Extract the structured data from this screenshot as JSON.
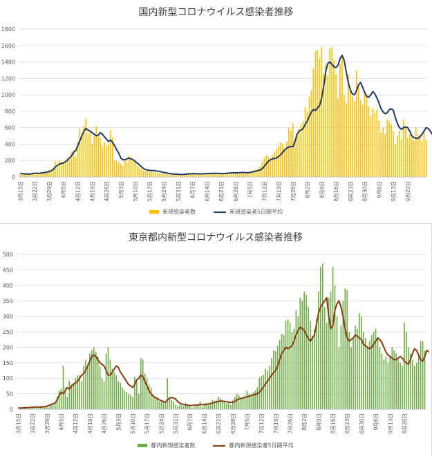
{
  "chart_data": [
    {
      "type": "bar+line",
      "title": "国内新型コロナウイルス感染者推移",
      "xlabel": "",
      "ylabel": "",
      "ylim": [
        0,
        1800
      ],
      "yticks": [
        "0",
        "200",
        "400",
        "600",
        "800",
        "1000",
        "1200",
        "1400",
        "1600",
        "1800"
      ],
      "xtick_labels": [
        "3月15日",
        "3月22日",
        "3月29日",
        "4月5日",
        "4月12日",
        "4月19日",
        "4月26日",
        "5月3日",
        "5月10日",
        "5月17日",
        "5月24日",
        "5月31日",
        "6月7日",
        "6月14日",
        "6月21日",
        "6月28日",
        "7月5日",
        "7月12日",
        "7月19日",
        "7月26日",
        "8月2日",
        "8月9日",
        "8月16日",
        "8月23日",
        "8月30日",
        "9月6日",
        "9月13日",
        "9月20日"
      ],
      "grid": true,
      "legend_position": "bottom",
      "colors": {
        "bars": "#FFC000",
        "line": "#203864"
      },
      "series": [
        {
          "name": "新規感染者数",
          "kind": "bar",
          "values": [
            42,
            35,
            30,
            45,
            28,
            40,
            55,
            38,
            50,
            30,
            45,
            62,
            50,
            70,
            95,
            60,
            90,
            190,
            120,
            205,
            170,
            180,
            210,
            240,
            200,
            300,
            330,
            240,
            430,
            590,
            500,
            620,
            710,
            520,
            560,
            400,
            500,
            620,
            510,
            470,
            380,
            420,
            380,
            400,
            570,
            480,
            200,
            195,
            180,
            160,
            140,
            200,
            180,
            260,
            240,
            200,
            180,
            140,
            120,
            100,
            80,
            70,
            75,
            65,
            70,
            60,
            55,
            50,
            45,
            40,
            45,
            30,
            35,
            25,
            30,
            35,
            30,
            25,
            20,
            25,
            40,
            35,
            50,
            30,
            35,
            45,
            40,
            30,
            25,
            35,
            40,
            38,
            45,
            40,
            50,
            36,
            45,
            30,
            40,
            35,
            45,
            55,
            50,
            48,
            40,
            45,
            50,
            60,
            55,
            45,
            50,
            55,
            65,
            70,
            80,
            90,
            100,
            130,
            180,
            230,
            260,
            250,
            200,
            260,
            300,
            340,
            380,
            420,
            400,
            350,
            430,
            600,
            570,
            650,
            420,
            520,
            580,
            640,
            680,
            850,
            790,
            980,
            1050,
            1320,
            1530,
            1550,
            1450,
            1580,
            1260,
            1380,
            1240,
            1560,
            1580,
            1420,
            1250,
            960,
            1380,
            1480,
            1000,
            900,
            1250,
            1050,
            980,
            920,
            1300,
            1120,
            940,
            880,
            1050,
            1000,
            860,
            740,
            840,
            780,
            820,
            690,
            540,
            600,
            520,
            700,
            680,
            640,
            560,
            400,
            500,
            560,
            460,
            700,
            620,
            480,
            520,
            480,
            440,
            600,
            510,
            500,
            440,
            570,
            450
          ]
        },
        {
          "name": "新規感染者5日間平均",
          "kind": "line",
          "values": [
            45,
            40,
            38,
            38,
            35,
            35,
            42,
            45,
            45,
            42,
            48,
            52,
            55,
            60,
            65,
            75,
            90,
            120,
            140,
            155,
            165,
            170,
            185,
            205,
            230,
            260,
            300,
            320,
            380,
            440,
            500,
            560,
            590,
            570,
            560,
            540,
            520,
            500,
            510,
            540,
            520,
            490,
            460,
            430,
            450,
            420,
            380,
            330,
            290,
            230,
            210,
            210,
            220,
            230,
            220,
            210,
            190,
            170,
            150,
            125,
            105,
            90,
            85,
            80,
            80,
            78,
            75,
            70,
            68,
            60,
            55,
            52,
            45,
            40,
            38,
            35,
            35,
            33,
            30,
            30,
            32,
            35,
            38,
            38,
            40,
            40,
            40,
            38,
            38,
            38,
            40,
            42,
            42,
            43,
            44,
            44,
            44,
            43,
            42,
            41,
            42,
            45,
            47,
            49,
            50,
            50,
            51,
            53,
            55,
            55,
            53,
            52,
            55,
            60,
            65,
            72,
            78,
            85,
            100,
            130,
            160,
            190,
            210,
            220,
            225,
            230,
            250,
            270,
            300,
            330,
            350,
            365,
            370,
            370,
            430,
            520,
            560,
            570,
            590,
            640,
            680,
            740,
            790,
            820,
            810,
            840,
            870,
            960,
            1100,
            1280,
            1380,
            1400,
            1370,
            1340,
            1330,
            1360,
            1440,
            1480,
            1420,
            1280,
            1150,
            1060,
            1010,
            1000,
            1050,
            1120,
            1150,
            1090,
            1030,
            980,
            970,
            1000,
            1040,
            1010,
            960,
            900,
            830,
            790,
            770,
            780,
            820,
            830,
            810,
            720,
            650,
            600,
            580,
            600,
            610,
            600,
            560,
            500,
            480,
            470,
            470,
            490,
            520,
            560,
            600,
            590,
            560,
            520,
            520,
            480,
            460,
            460,
            510,
            540,
            530
          ]
        }
      ]
    },
    {
      "type": "bar+line",
      "title": "東京都内新型コロナウイルス感染者推移",
      "xlabel": "",
      "ylabel": "",
      "ylim": [
        0,
        500
      ],
      "yticks": [
        "0",
        "50",
        "100",
        "150",
        "200",
        "250",
        "300",
        "350",
        "400",
        "450",
        "500"
      ],
      "xtick_labels": [
        "3月15日",
        "3月22日",
        "3月29日",
        "4月5日",
        "4月12日",
        "4月19日",
        "4月26日",
        "5月3日",
        "5月10日",
        "5月17日",
        "5月24日",
        "5月31日",
        "6月7日",
        "6月14日",
        "6月21日",
        "6月28日",
        "7月5日",
        "7月12日",
        "7月19日",
        "7月26日",
        "8月2日",
        "8月9日",
        "8月16日",
        "8月23日",
        "8月30日",
        "9月6日",
        "9月13日",
        "9月20日"
      ],
      "grid": true,
      "legend_position": "bottom",
      "colors": {
        "bars": "#70AD47",
        "line": "#843C0C"
      },
      "series": [
        {
          "name": "都内新規感染者数",
          "kind": "bar",
          "values": [
            0,
            3,
            4,
            6,
            5,
            2,
            5,
            4,
            8,
            5,
            4,
            9,
            6,
            9,
            8,
            6,
            16,
            20,
            17,
            41,
            60,
            66,
            140,
            70,
            40,
            92,
            80,
            85,
            100,
            109,
            110,
            90,
            140,
            160,
            145,
            180,
            190,
            200,
            185,
            170,
            140,
            100,
            90,
            180,
            200,
            160,
            130,
            120,
            110,
            90,
            85,
            70,
            60,
            55,
            50,
            46,
            40,
            105,
            90,
            50,
            165,
            160,
            115,
            100,
            80,
            70,
            45,
            40,
            35,
            25,
            30,
            25,
            20,
            100,
            40,
            30,
            25,
            15,
            10,
            15,
            12,
            10,
            20,
            15,
            10,
            5,
            8,
            12,
            15,
            25,
            8,
            18,
            20,
            15,
            20,
            30,
            27,
            28,
            40,
            35,
            24,
            22,
            18,
            22,
            14,
            30,
            40,
            50,
            45,
            35,
            40,
            45,
            60,
            50,
            48,
            55,
            60,
            70,
            102,
            107,
            111,
            130,
            124,
            140,
            165,
            190,
            188,
            206,
            224,
            243,
            240,
            286,
            290,
            280,
            250,
            260,
            320,
            300,
            360,
            350,
            380,
            370,
            330,
            286,
            237,
            258,
            292,
            380,
            460,
            470,
            330,
            280,
            360,
            380,
            460,
            400,
            300,
            200,
            270,
            350,
            390,
            385,
            250,
            200,
            230,
            270,
            260,
            310,
            300,
            250,
            230,
            200,
            220,
            240,
            250,
            260,
            230,
            200,
            180,
            160,
            170,
            150,
            170,
            200,
            190,
            180,
            160,
            150,
            140,
            280,
            250,
            200,
            180,
            160,
            140,
            150,
            170,
            220,
            220,
            190
          ]
        },
        {
          "name": "都内新規感染者5日間平均",
          "kind": "line",
          "values": [
            5,
            4,
            4,
            5,
            5,
            5,
            6,
            6,
            7,
            7,
            7,
            7,
            8,
            8,
            10,
            12,
            15,
            18,
            20,
            30,
            45,
            55,
            50,
            60,
            70,
            65,
            75,
            80,
            85,
            90,
            100,
            110,
            115,
            125,
            140,
            155,
            170,
            175,
            170,
            160,
            150,
            145,
            140,
            125,
            110,
            110,
            120,
            130,
            140,
            135,
            120,
            110,
            100,
            90,
            80,
            75,
            70,
            80,
            95,
            100,
            110,
            105,
            90,
            75,
            60,
            50,
            42,
            38,
            35,
            30,
            28,
            25,
            22,
            30,
            35,
            38,
            36,
            33,
            25,
            20,
            17,
            15,
            14,
            13,
            12,
            12,
            13,
            13,
            14,
            15,
            15,
            15,
            16,
            17,
            18,
            20,
            22,
            24,
            25,
            27,
            26,
            25,
            24,
            23,
            22,
            22,
            25,
            30,
            33,
            35,
            36,
            38,
            40,
            42,
            44,
            46,
            48,
            50,
            55,
            62,
            72,
            82,
            90,
            100,
            110,
            118,
            125,
            140,
            160,
            180,
            190,
            200,
            195,
            200,
            205,
            220,
            240,
            255,
            265,
            260,
            255,
            240,
            228,
            220,
            230,
            240,
            275,
            310,
            330,
            340,
            350,
            360,
            300,
            260,
            270,
            320,
            340,
            350,
            330,
            300,
            260,
            230,
            220,
            225,
            230,
            240,
            235,
            230,
            225,
            210,
            205,
            200,
            195,
            200,
            210,
            220,
            230,
            225,
            215,
            200,
            185,
            175,
            170,
            165,
            160,
            160,
            165,
            170,
            165,
            155,
            150,
            145,
            160,
            180,
            195,
            190,
            175,
            160,
            155,
            170,
            190,
            185
          ]
        }
      ]
    }
  ]
}
